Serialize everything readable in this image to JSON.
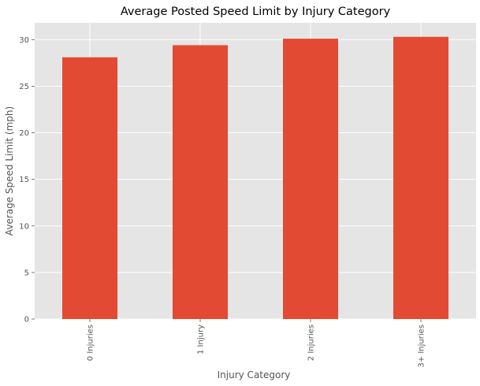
{
  "chart_data": {
    "type": "bar",
    "title": "Average Posted Speed Limit by Injury Category",
    "xlabel": "Injury Category",
    "ylabel": "Average Speed Limit (mph)",
    "categories": [
      "0 Injuries",
      "1 Injury",
      "2 Injuries",
      "3+ Injuries"
    ],
    "values": [
      28.1,
      29.4,
      30.1,
      30.3
    ],
    "ylim": [
      0,
      31.8
    ],
    "yticks": [
      0,
      5,
      10,
      15,
      20,
      25,
      30
    ],
    "grid": true,
    "legend": "none",
    "colors": {
      "bar": "#E24A33",
      "plot_background": "#E5E5E5",
      "grid": "#FFFFFF",
      "tick_text": "#555555",
      "title_text": "#000000"
    }
  }
}
